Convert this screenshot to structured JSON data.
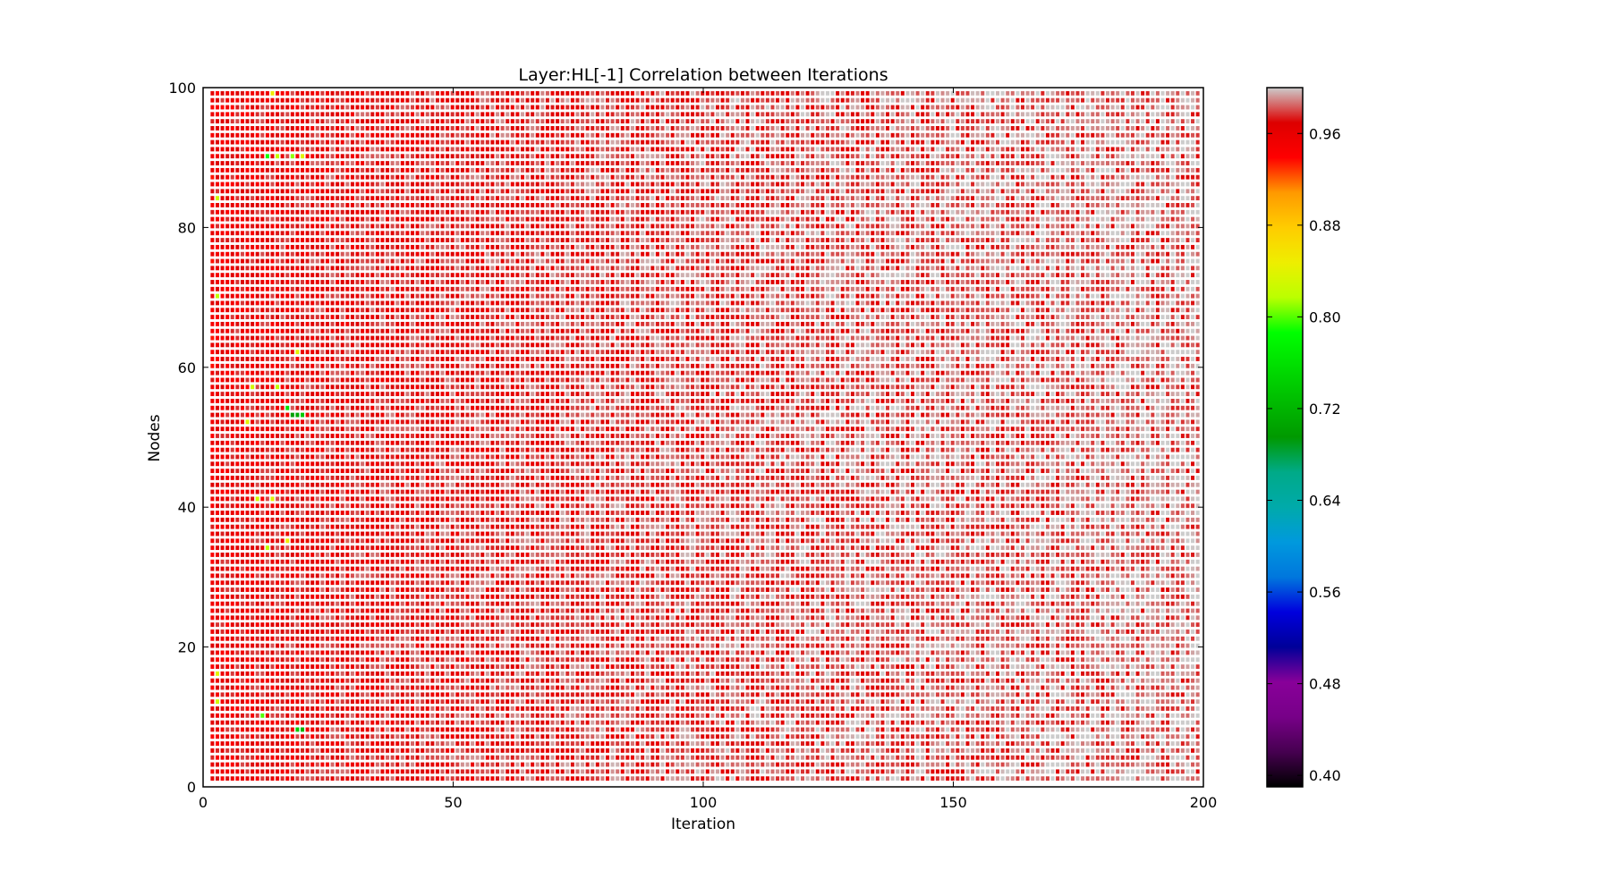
{
  "chart_data": {
    "type": "heatmap",
    "title": "Layer:HL[-1] Correlation between Iterations",
    "xlabel": "Iteration",
    "ylabel": "Nodes",
    "xlim": [
      0,
      200
    ],
    "ylim": [
      0,
      100
    ],
    "x_ticks": [
      0,
      50,
      100,
      150,
      200
    ],
    "y_ticks": [
      0,
      20,
      40,
      60,
      80,
      100
    ],
    "colorbar": {
      "colormap": "nipy_spectral",
      "range": [
        0.39,
        1.0
      ],
      "ticks": [
        0.4,
        0.48,
        0.56,
        0.64,
        0.72,
        0.8,
        0.88,
        0.96
      ],
      "tick_labels": [
        "0.40",
        "0.48",
        "0.56",
        "0.64",
        "0.72",
        "0.80",
        "0.88",
        "0.96"
      ]
    },
    "grid": {
      "node_count": 99,
      "iteration_start": 2,
      "iteration_end": 199
    },
    "value_trend": {
      "description_free": true,
      "early_iterations_value": 0.955,
      "late_iterations_value": 0.99,
      "low_value_cells": [
        {
          "x": 19,
          "y": 8,
          "value": 0.74
        },
        {
          "x": 20,
          "y": 8,
          "value": 0.72
        },
        {
          "x": 18,
          "y": 53,
          "value": 0.7
        },
        {
          "x": 19,
          "y": 53,
          "value": 0.71
        },
        {
          "x": 20,
          "y": 53,
          "value": 0.74
        },
        {
          "x": 17,
          "y": 54,
          "value": 0.76
        },
        {
          "x": 13,
          "y": 90,
          "value": 0.79
        },
        {
          "x": 15,
          "y": 90,
          "value": 0.82
        },
        {
          "x": 18,
          "y": 90,
          "value": 0.81
        },
        {
          "x": 20,
          "y": 90,
          "value": 0.84
        },
        {
          "x": 3,
          "y": 84,
          "value": 0.83
        },
        {
          "x": 3,
          "y": 70,
          "value": 0.82
        },
        {
          "x": 19,
          "y": 62,
          "value": 0.84
        },
        {
          "x": 10,
          "y": 57,
          "value": 0.83
        },
        {
          "x": 15,
          "y": 57,
          "value": 0.82
        },
        {
          "x": 9,
          "y": 52,
          "value": 0.84
        },
        {
          "x": 11,
          "y": 41,
          "value": 0.83
        },
        {
          "x": 14,
          "y": 41,
          "value": 0.84
        },
        {
          "x": 13,
          "y": 34,
          "value": 0.82
        },
        {
          "x": 17,
          "y": 35,
          "value": 0.85
        },
        {
          "x": 3,
          "y": 16,
          "value": 0.84
        },
        {
          "x": 3,
          "y": 12,
          "value": 0.83
        },
        {
          "x": 12,
          "y": 10,
          "value": 0.8
        },
        {
          "x": 14,
          "y": 99,
          "value": 0.85
        }
      ]
    }
  }
}
